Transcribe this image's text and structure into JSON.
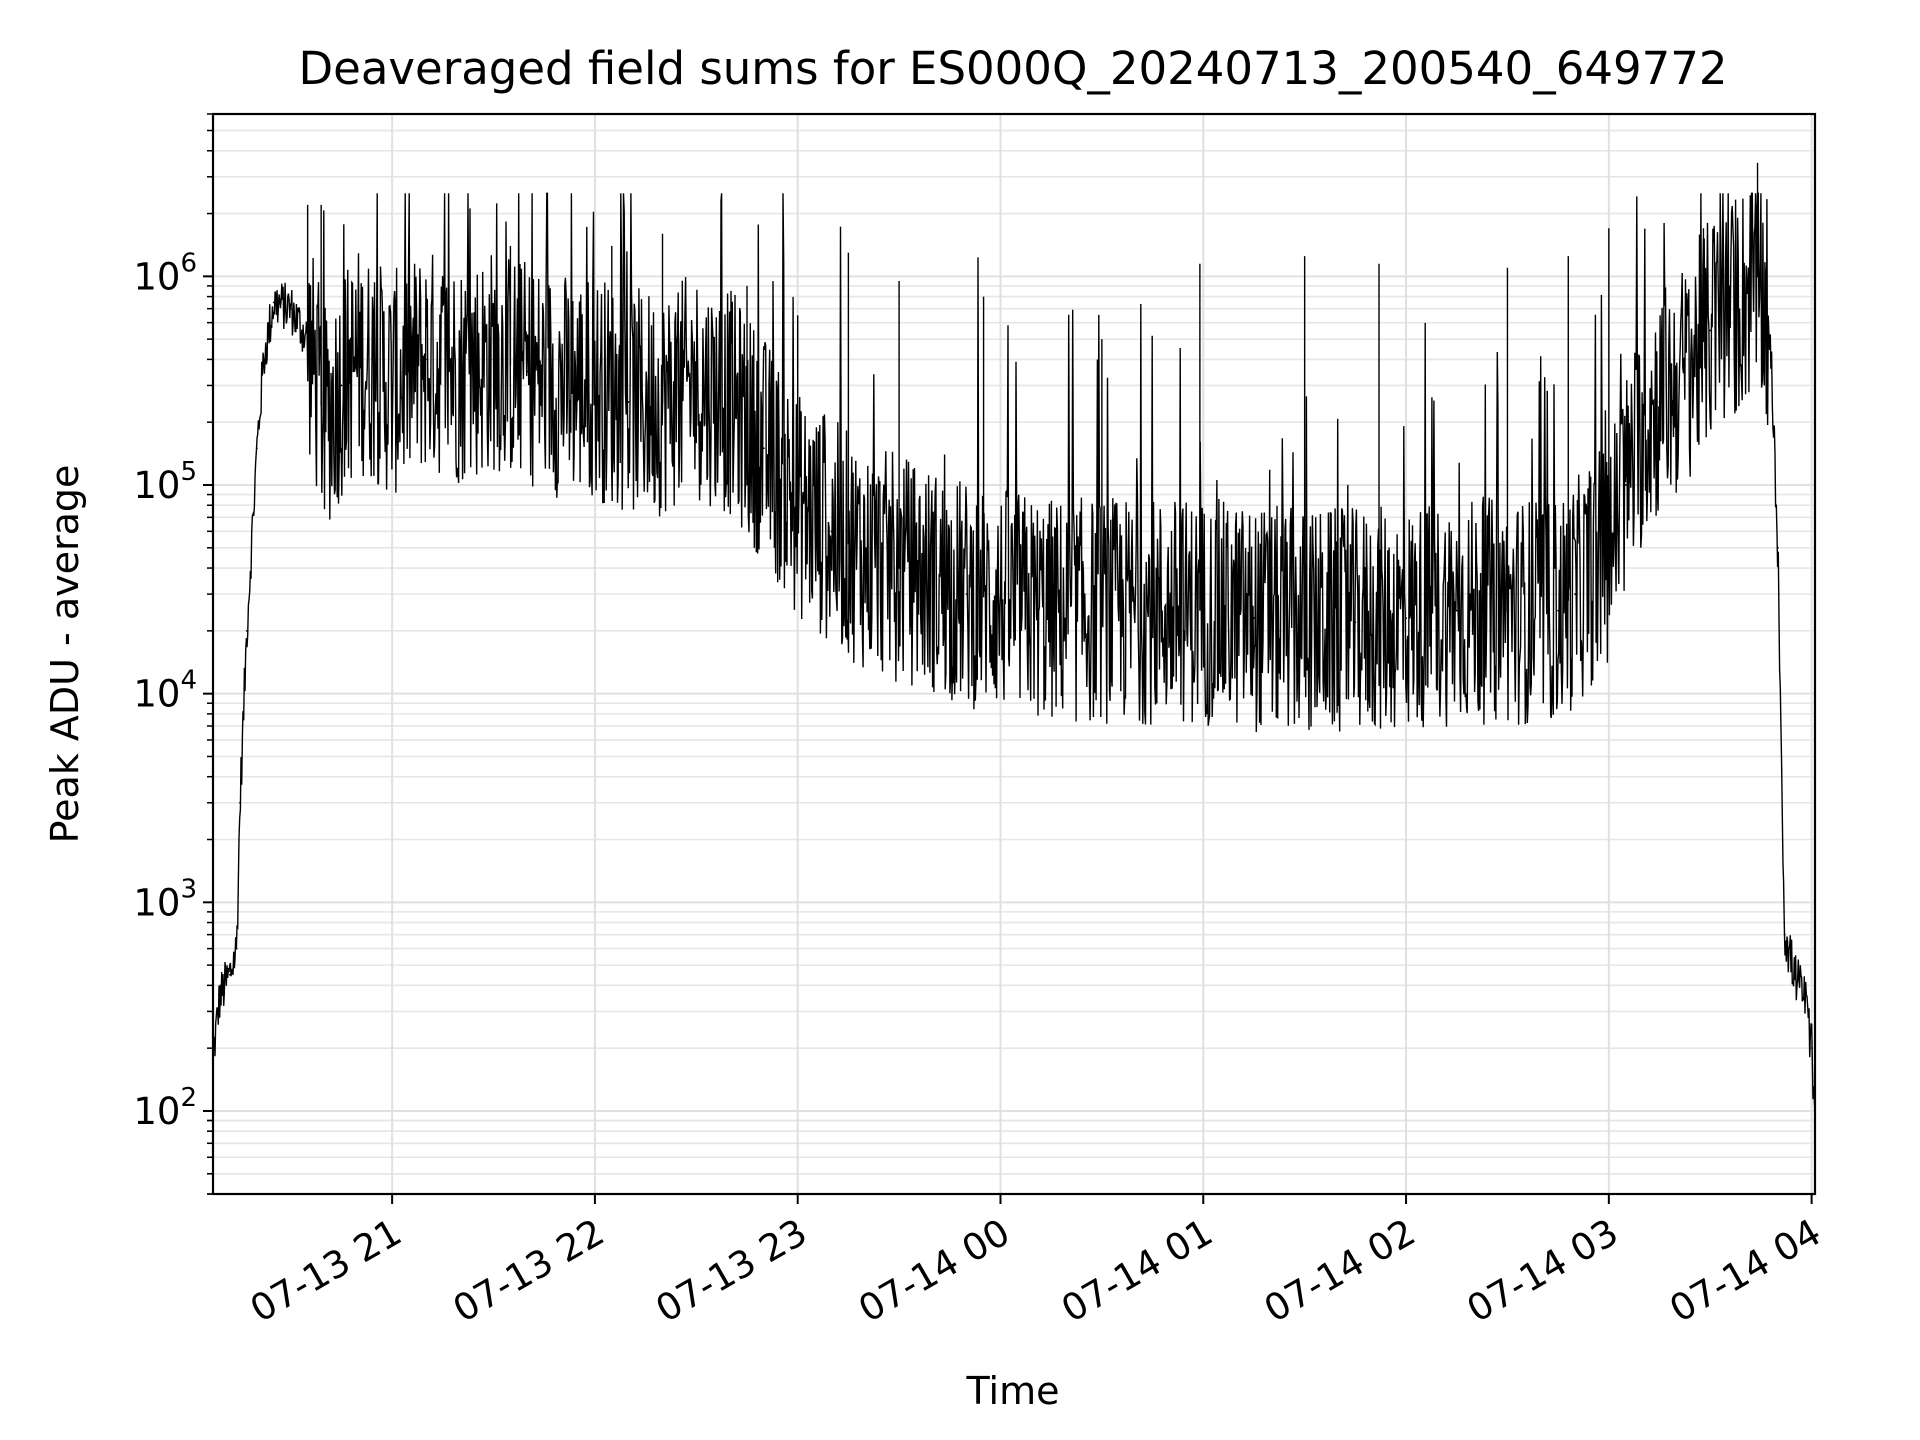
{
  "chart_data": {
    "type": "line",
    "title": "Deaveraged field sums for ES000Q_20240713_200540_649772",
    "xlabel": "Time",
    "ylabel": "Peak ADU - average",
    "y_scale": "log",
    "ylim": [
      40,
      6000000
    ],
    "xlim": [
      "2024-07-13 20:07",
      "2024-07-14 04:01"
    ],
    "grid": true,
    "x_ticks": [
      {
        "time": "2024-07-13 21:00",
        "label": "07-13 21"
      },
      {
        "time": "2024-07-13 22:00",
        "label": "07-13 22"
      },
      {
        "time": "2024-07-13 23:00",
        "label": "07-13 23"
      },
      {
        "time": "2024-07-14 00:00",
        "label": "07-14 00"
      },
      {
        "time": "2024-07-14 01:00",
        "label": "07-14 01"
      },
      {
        "time": "2024-07-14 02:00",
        "label": "07-14 02"
      },
      {
        "time": "2024-07-14 03:00",
        "label": "07-14 03"
      },
      {
        "time": "2024-07-14 04:00",
        "label": "07-14 04"
      }
    ],
    "y_ticks": [
      {
        "value": 100,
        "base": "10",
        "exp": "2"
      },
      {
        "value": 1000,
        "base": "10",
        "exp": "3"
      },
      {
        "value": 10000,
        "base": "10",
        "exp": "4"
      },
      {
        "value": 100000,
        "base": "10",
        "exp": "5"
      },
      {
        "value": 1000000,
        "base": "10",
        "exp": "6"
      }
    ],
    "series": [
      {
        "color": "#000000",
        "x": [
          "2024-07-13 20:07",
          "2024-07-13 20:09",
          "2024-07-13 20:12",
          "2024-07-13 20:14",
          "2024-07-13 20:15",
          "2024-07-13 20:17",
          "2024-07-13 20:20",
          "2024-07-13 20:22",
          "2024-07-13 20:25",
          "2024-07-13 20:30",
          "2024-07-13 20:35",
          "2024-07-13 20:40",
          "2024-07-13 20:45",
          "2024-07-13 20:50",
          "2024-07-13 20:55",
          "2024-07-13 21:00",
          "2024-07-13 21:10",
          "2024-07-13 21:20",
          "2024-07-13 21:30",
          "2024-07-13 21:40",
          "2024-07-13 21:50",
          "2024-07-13 22:00",
          "2024-07-13 22:10",
          "2024-07-13 22:20",
          "2024-07-13 22:30",
          "2024-07-13 22:40",
          "2024-07-13 22:50",
          "2024-07-13 23:00",
          "2024-07-13 23:10",
          "2024-07-13 23:20",
          "2024-07-13 23:30",
          "2024-07-13 23:40",
          "2024-07-13 23:50",
          "2024-07-14 00:00",
          "2024-07-14 00:15",
          "2024-07-14 00:30",
          "2024-07-14 00:45",
          "2024-07-14 01:00",
          "2024-07-14 01:15",
          "2024-07-14 01:30",
          "2024-07-14 01:45",
          "2024-07-14 02:00",
          "2024-07-14 02:15",
          "2024-07-14 02:30",
          "2024-07-14 02:45",
          "2024-07-14 02:50",
          "2024-07-14 03:00",
          "2024-07-14 03:05",
          "2024-07-14 03:10",
          "2024-07-14 03:15",
          "2024-07-14 03:20",
          "2024-07-14 03:25",
          "2024-07-14 03:30",
          "2024-07-14 03:35",
          "2024-07-14 03:40",
          "2024-07-14 03:44",
          "2024-07-14 03:46",
          "2024-07-14 03:48",
          "2024-07-14 03:50",
          "2024-07-14 03:52",
          "2024-07-14 03:55",
          "2024-07-14 03:58",
          "2024-07-14 04:00",
          "2024-07-14 04:01"
        ],
        "y": [
          180,
          350,
          450,
          600,
          3000,
          20000,
          150000,
          400000,
          750000,
          700000,
          500000,
          200000,
          300000,
          400000,
          350000,
          300000,
          400000,
          350000,
          400000,
          350000,
          300000,
          300000,
          250000,
          250000,
          300000,
          250000,
          150000,
          80000,
          60000,
          45000,
          40000,
          35000,
          30000,
          28000,
          25000,
          25000,
          25000,
          25000,
          23000,
          22000,
          22000,
          23000,
          25000,
          25000,
          25000,
          30000,
          50000,
          100000,
          180000,
          250000,
          300000,
          400000,
          550000,
          650000,
          800000,
          1000000,
          700000,
          400000,
          50000,
          700,
          450,
          350,
          200,
          80
        ],
        "spikes": [
          {
            "x": "2024-07-13 20:35",
            "y": 2200000
          },
          {
            "x": "2024-07-13 20:39",
            "y": 2200000
          },
          {
            "x": "2024-07-13 21:05",
            "y": 1400000
          },
          {
            "x": "2024-07-13 21:35",
            "y": 1400000
          },
          {
            "x": "2024-07-13 22:05",
            "y": 1400000
          },
          {
            "x": "2024-07-13 22:20",
            "y": 1600000
          },
          {
            "x": "2024-07-13 22:45",
            "y": 900000
          },
          {
            "x": "2024-07-13 23:00",
            "y": 650000
          },
          {
            "x": "2024-07-13 23:15",
            "y": 1300000
          },
          {
            "x": "2024-07-13 23:30",
            "y": 950000
          },
          {
            "x": "2024-07-13 23:55",
            "y": 800000
          },
          {
            "x": "2024-07-14 00:30",
            "y": 500000
          },
          {
            "x": "2024-07-14 00:59",
            "y": 1150000
          },
          {
            "x": "2024-07-14 01:30",
            "y": 1250000
          },
          {
            "x": "2024-07-14 01:52",
            "y": 1150000
          },
          {
            "x": "2024-07-14 02:30",
            "y": 1100000
          },
          {
            "x": "2024-07-14 02:48",
            "y": 1250000
          },
          {
            "x": "2024-07-14 03:00",
            "y": 1700000
          },
          {
            "x": "2024-07-14 03:28",
            "y": 1700000
          },
          {
            "x": "2024-07-14 03:44",
            "y": 3500000
          }
        ]
      }
    ]
  }
}
